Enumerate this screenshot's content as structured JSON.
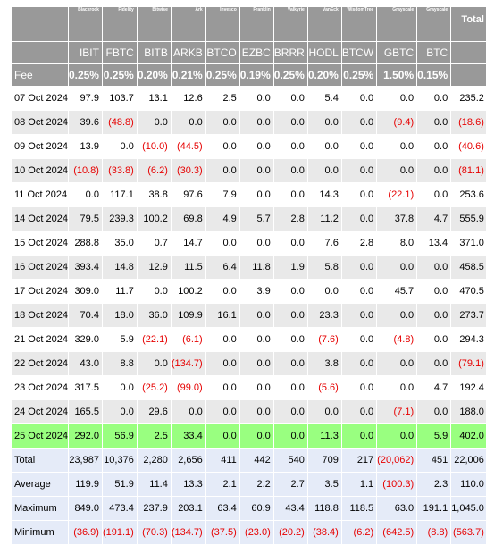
{
  "header": {
    "issuers": [
      "Blackrock",
      "Fidelity",
      "Bitwise",
      "Ark",
      "Invesco",
      "Franklin",
      "Valkyrie",
      "VanEck",
      "WisdomTree",
      "Grayscale",
      "Grayscale"
    ],
    "total_label": "Total",
    "tickers": [
      "IBIT",
      "FBTC",
      "BITB",
      "ARKB",
      "BTCO",
      "EZBC",
      "BRRR",
      "HODL",
      "BTCW",
      "GBTC",
      "BTC"
    ],
    "fee_label": "Fee",
    "fees": [
      "0.25%",
      "0.25%",
      "0.20%",
      "0.21%",
      "0.25%",
      "0.19%",
      "0.25%",
      "0.20%",
      "0.25%",
      "1.50%",
      "0.15%"
    ]
  },
  "colors": {
    "header_bg": "#999999",
    "row_alt_bg": "#e9e9e9",
    "highlight_bg": "#99ff80",
    "stats_bg": "#e5ebf8",
    "negative_text": "#e60000"
  },
  "rows": [
    {
      "date": "07 Oct 2024",
      "values": [
        "97.9",
        "103.7",
        "13.1",
        "12.6",
        "2.5",
        "0.0",
        "0.0",
        "5.4",
        "0.0",
        "0.0",
        "0.0"
      ],
      "total": "235.2"
    },
    {
      "date": "08 Oct 2024",
      "values": [
        "39.6",
        "(48.8)",
        "0.0",
        "0.0",
        "0.0",
        "0.0",
        "0.0",
        "0.0",
        "0.0",
        "(9.4)",
        "0.0"
      ],
      "total": "(18.6)"
    },
    {
      "date": "09 Oct 2024",
      "values": [
        "13.9",
        "0.0",
        "(10.0)",
        "(44.5)",
        "0.0",
        "0.0",
        "0.0",
        "0.0",
        "0.0",
        "0.0",
        "0.0"
      ],
      "total": "(40.6)"
    },
    {
      "date": "10 Oct 2024",
      "values": [
        "(10.8)",
        "(33.8)",
        "(6.2)",
        "(30.3)",
        "0.0",
        "0.0",
        "0.0",
        "0.0",
        "0.0",
        "0.0",
        "0.0"
      ],
      "total": "(81.1)"
    },
    {
      "date": "11 Oct 2024",
      "values": [
        "0.0",
        "117.1",
        "38.8",
        "97.6",
        "7.9",
        "0.0",
        "0.0",
        "14.3",
        "0.0",
        "(22.1)",
        "0.0"
      ],
      "total": "253.6"
    },
    {
      "date": "14 Oct 2024",
      "values": [
        "79.5",
        "239.3",
        "100.2",
        "69.8",
        "4.9",
        "5.7",
        "2.8",
        "11.2",
        "0.0",
        "37.8",
        "4.7"
      ],
      "total": "555.9"
    },
    {
      "date": "15 Oct 2024",
      "values": [
        "288.8",
        "35.0",
        "0.7",
        "14.7",
        "0.0",
        "0.0",
        "0.0",
        "7.6",
        "2.8",
        "8.0",
        "13.4"
      ],
      "total": "371.0"
    },
    {
      "date": "16 Oct 2024",
      "values": [
        "393.4",
        "14.8",
        "12.9",
        "11.5",
        "6.4",
        "11.8",
        "1.9",
        "5.8",
        "0.0",
        "0.0",
        "0.0"
      ],
      "total": "458.5"
    },
    {
      "date": "17 Oct 2024",
      "values": [
        "309.0",
        "11.7",
        "0.0",
        "100.2",
        "0.0",
        "3.9",
        "0.0",
        "0.0",
        "0.0",
        "45.7",
        "0.0"
      ],
      "total": "470.5"
    },
    {
      "date": "18 Oct 2024",
      "values": [
        "70.4",
        "18.0",
        "36.0",
        "109.9",
        "16.1",
        "0.0",
        "0.0",
        "23.3",
        "0.0",
        "0.0",
        "0.0"
      ],
      "total": "273.7"
    },
    {
      "date": "21 Oct 2024",
      "values": [
        "329.0",
        "5.9",
        "(22.1)",
        "(6.1)",
        "0.0",
        "0.0",
        "0.0",
        "(7.6)",
        "0.0",
        "(4.8)",
        "0.0"
      ],
      "total": "294.3"
    },
    {
      "date": "22 Oct 2024",
      "values": [
        "43.0",
        "8.8",
        "0.0",
        "(134.7)",
        "0.0",
        "0.0",
        "0.0",
        "3.8",
        "0.0",
        "0.0",
        "0.0"
      ],
      "total": "(79.1)"
    },
    {
      "date": "23 Oct 2024",
      "values": [
        "317.5",
        "0.0",
        "(25.2)",
        "(99.0)",
        "0.0",
        "0.0",
        "0.0",
        "(5.6)",
        "0.0",
        "0.0",
        "4.7"
      ],
      "total": "192.4"
    },
    {
      "date": "24 Oct 2024",
      "values": [
        "165.5",
        "0.0",
        "29.6",
        "0.0",
        "0.0",
        "0.0",
        "0.0",
        "0.0",
        "0.0",
        "(7.1)",
        "0.0"
      ],
      "total": "188.0"
    },
    {
      "date": "25 Oct 2024",
      "values": [
        "292.0",
        "56.9",
        "2.5",
        "33.4",
        "0.0",
        "0.0",
        "0.0",
        "11.3",
        "0.0",
        "0.0",
        "5.9"
      ],
      "total": "402.0",
      "highlight": true
    }
  ],
  "stats": [
    {
      "label": "Total",
      "values": [
        "23,987",
        "10,376",
        "2,280",
        "2,656",
        "411",
        "442",
        "540",
        "709",
        "217",
        "(20,062)",
        "451"
      ],
      "total": "22,006"
    },
    {
      "label": "Average",
      "values": [
        "119.9",
        "51.9",
        "11.4",
        "13.3",
        "2.1",
        "2.2",
        "2.7",
        "3.5",
        "1.1",
        "(100.3)",
        "2.3"
      ],
      "total": "110.0"
    },
    {
      "label": "Maximum",
      "values": [
        "849.0",
        "473.4",
        "237.9",
        "203.1",
        "63.4",
        "60.9",
        "43.4",
        "118.8",
        "118.5",
        "63.0",
        "191.1"
      ],
      "total": "1,045.0"
    },
    {
      "label": "Minimum",
      "values": [
        "(36.9)",
        "(191.1)",
        "(70.3)",
        "(134.7)",
        "(37.5)",
        "(23.0)",
        "(20.2)",
        "(38.4)",
        "(6.2)",
        "(642.5)",
        "(8.8)"
      ],
      "total": "(563.7)"
    }
  ]
}
